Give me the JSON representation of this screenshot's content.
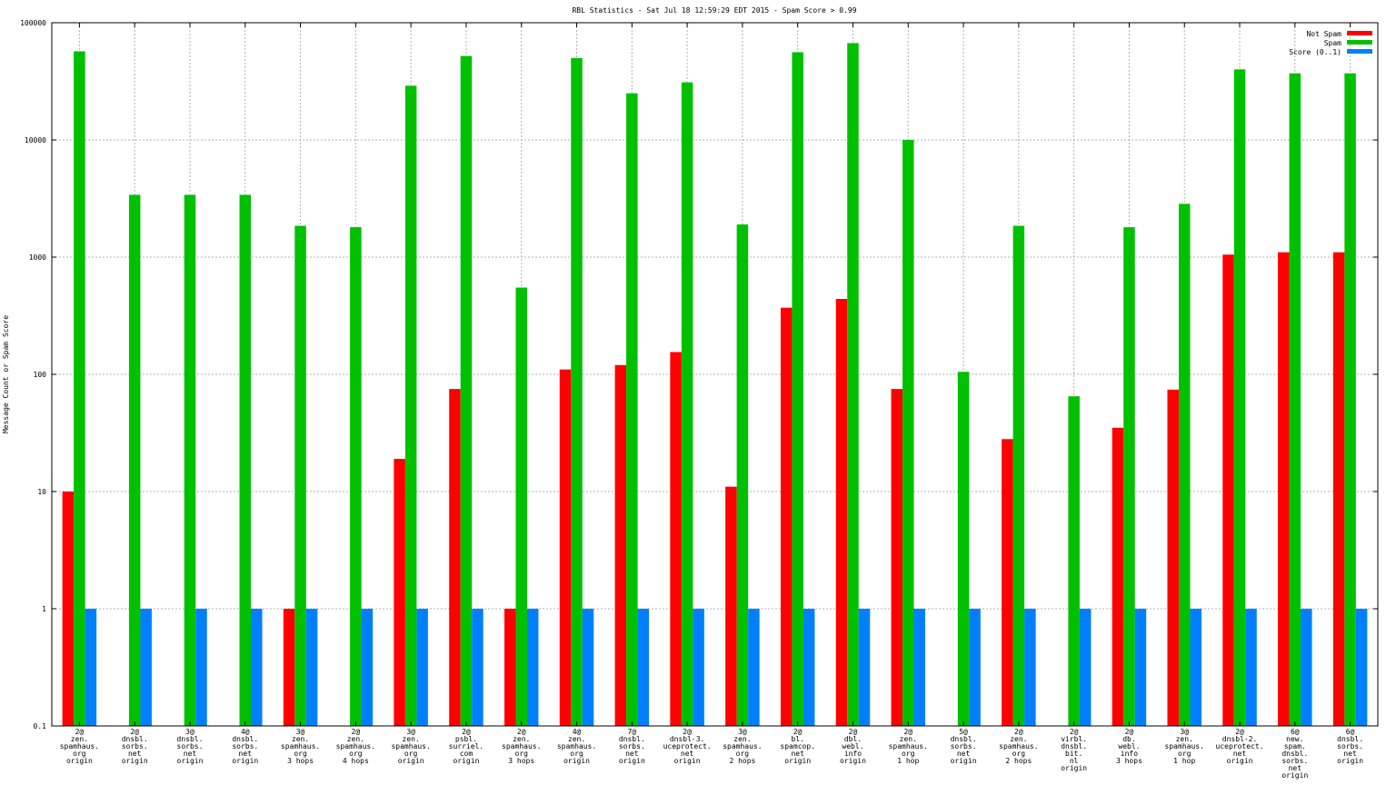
{
  "chart_data": {
    "type": "bar",
    "title": "RBL Statistics - Sat Jul 18 12:59:29 EDT 2015 - Spam Score > 0.99",
    "xlabel": "",
    "ylabel": "Message Count or Spam Score",
    "yscale": "log",
    "ylim": [
      0.1,
      100000
    ],
    "y_ticks": [
      0.1,
      1,
      10,
      100,
      1000,
      10000,
      100000
    ],
    "y_tick_labels": [
      "0.1",
      "1",
      "10",
      "100",
      "1000",
      "10000",
      "100000"
    ],
    "grid": true,
    "legend_position": "top-right",
    "categories": [
      [
        "2@",
        "zen.",
        "spamhaus.",
        "org",
        "origin"
      ],
      [
        "2@",
        "dnsbl.",
        "sorbs.",
        "net",
        "origin"
      ],
      [
        "3@",
        "dnsbl.",
        "sorbs.",
        "net",
        "origin"
      ],
      [
        "4@",
        "dnsbl.",
        "sorbs.",
        "net",
        "origin"
      ],
      [
        "3@",
        "zen.",
        "spamhaus.",
        "org",
        "3 hops"
      ],
      [
        "2@",
        "zen.",
        "spamhaus.",
        "org",
        "4 hops"
      ],
      [
        "3@",
        "zen.",
        "spamhaus.",
        "org",
        "origin"
      ],
      [
        "2@",
        "psbl.",
        "surriel.",
        "com",
        "origin"
      ],
      [
        "2@",
        "zen.",
        "spamhaus.",
        "org",
        "3 hops"
      ],
      [
        "4@",
        "zen.",
        "spamhaus.",
        "org",
        "origin"
      ],
      [
        "7@",
        "dnsbl.",
        "sorbs.",
        "net",
        "origin"
      ],
      [
        "2@",
        "dnsbl-3.",
        "uceprotect.",
        "net",
        "origin"
      ],
      [
        "3@",
        "zen.",
        "spamhaus.",
        "org",
        "2 hops"
      ],
      [
        "2@",
        "bl.",
        "spamcop.",
        "net",
        "origin"
      ],
      [
        "2@",
        "dbl.",
        "webl.",
        "info",
        "origin"
      ],
      [
        "2@",
        "zen.",
        "spamhaus.",
        "org",
        "1 hop"
      ],
      [
        "5@",
        "dnsbl.",
        "sorbs.",
        "net",
        "origin"
      ],
      [
        "2@",
        "zen.",
        "spamhaus.",
        "org",
        "2 hops"
      ],
      [
        "2@",
        "virbl.",
        "dnsbl.",
        "bit.",
        "nl",
        "origin"
      ],
      [
        "2@",
        "db.",
        "webl.",
        "info",
        "3 hops"
      ],
      [
        "3@",
        "zen.",
        "spamhaus.",
        "org",
        "1 hop"
      ],
      [
        "2@",
        "dnsbl-2.",
        "uceprotect.",
        "net",
        "origin"
      ],
      [
        "6@",
        "new.",
        "spam.",
        "dnsbl.",
        "sorbs.",
        "net",
        "origin"
      ],
      [
        "6@",
        "dnsbl.",
        "sorbs.",
        "net",
        "origin"
      ]
    ],
    "series": [
      {
        "name": "Not Spam",
        "color": "#ff0000",
        "values": [
          10,
          null,
          null,
          null,
          1,
          null,
          19,
          75,
          1,
          110,
          120,
          155,
          11,
          370,
          440,
          75,
          null,
          28,
          null,
          35,
          74,
          1050,
          1100,
          1100
        ]
      },
      {
        "name": "Spam",
        "color": "#00c000",
        "values": [
          57000,
          3400,
          3400,
          3400,
          1850,
          1800,
          29000,
          52000,
          550,
          50000,
          25000,
          31000,
          1900,
          56000,
          67000,
          10000,
          105,
          1850,
          65,
          1800,
          2850,
          40000,
          37000,
          37000
        ]
      },
      {
        "name": "Score (0..1)",
        "color": "#0080ff",
        "values": [
          1,
          1,
          1,
          1,
          1,
          1,
          1,
          1,
          1,
          1,
          1,
          1,
          1,
          1,
          1,
          1,
          1,
          1,
          1,
          1,
          1,
          1,
          1,
          1
        ]
      }
    ]
  }
}
